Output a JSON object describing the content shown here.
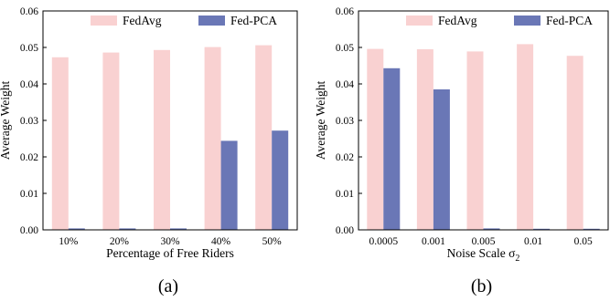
{
  "colors": {
    "fedavg": "#f9d1d1",
    "fedpca": "#6a77b6"
  },
  "chart_data": [
    {
      "type": "bar",
      "caption": "(a)",
      "xlabel": "Percentage of Free Riders",
      "ylabel": "Average Weight",
      "categories": [
        "10%",
        "20%",
        "30%",
        "40%",
        "50%"
      ],
      "ylim": [
        0,
        0.06
      ],
      "yticks": [
        "0.00",
        "0.01",
        "0.02",
        "0.03",
        "0.04",
        "0.05",
        "0.06"
      ],
      "legend_position": "top",
      "series": [
        {
          "name": "FedAvg",
          "values": [
            0.0473,
            0.0486,
            0.0493,
            0.0501,
            0.0506
          ]
        },
        {
          "name": "Fed-PCA",
          "values": [
            0.0004,
            0.0004,
            0.0004,
            0.0244,
            0.0272
          ]
        }
      ]
    },
    {
      "type": "bar",
      "caption": "(b)",
      "xlabel": "Noise Scale σ",
      "xlabel_subscript": "2",
      "ylabel": "Average Weight",
      "categories": [
        "0.0005",
        "0.001",
        "0.005",
        "0.01",
        "0.05"
      ],
      "ylim": [
        0,
        0.06
      ],
      "yticks": [
        "0.00",
        "0.01",
        "0.02",
        "0.03",
        "0.04",
        "0.05",
        "0.06"
      ],
      "legend_position": "top",
      "series": [
        {
          "name": "FedAvg",
          "values": [
            0.0496,
            0.0495,
            0.0489,
            0.0509,
            0.0477
          ]
        },
        {
          "name": "Fed-PCA",
          "values": [
            0.0443,
            0.0385,
            0.0004,
            0.0003,
            0.0003
          ]
        }
      ]
    }
  ]
}
